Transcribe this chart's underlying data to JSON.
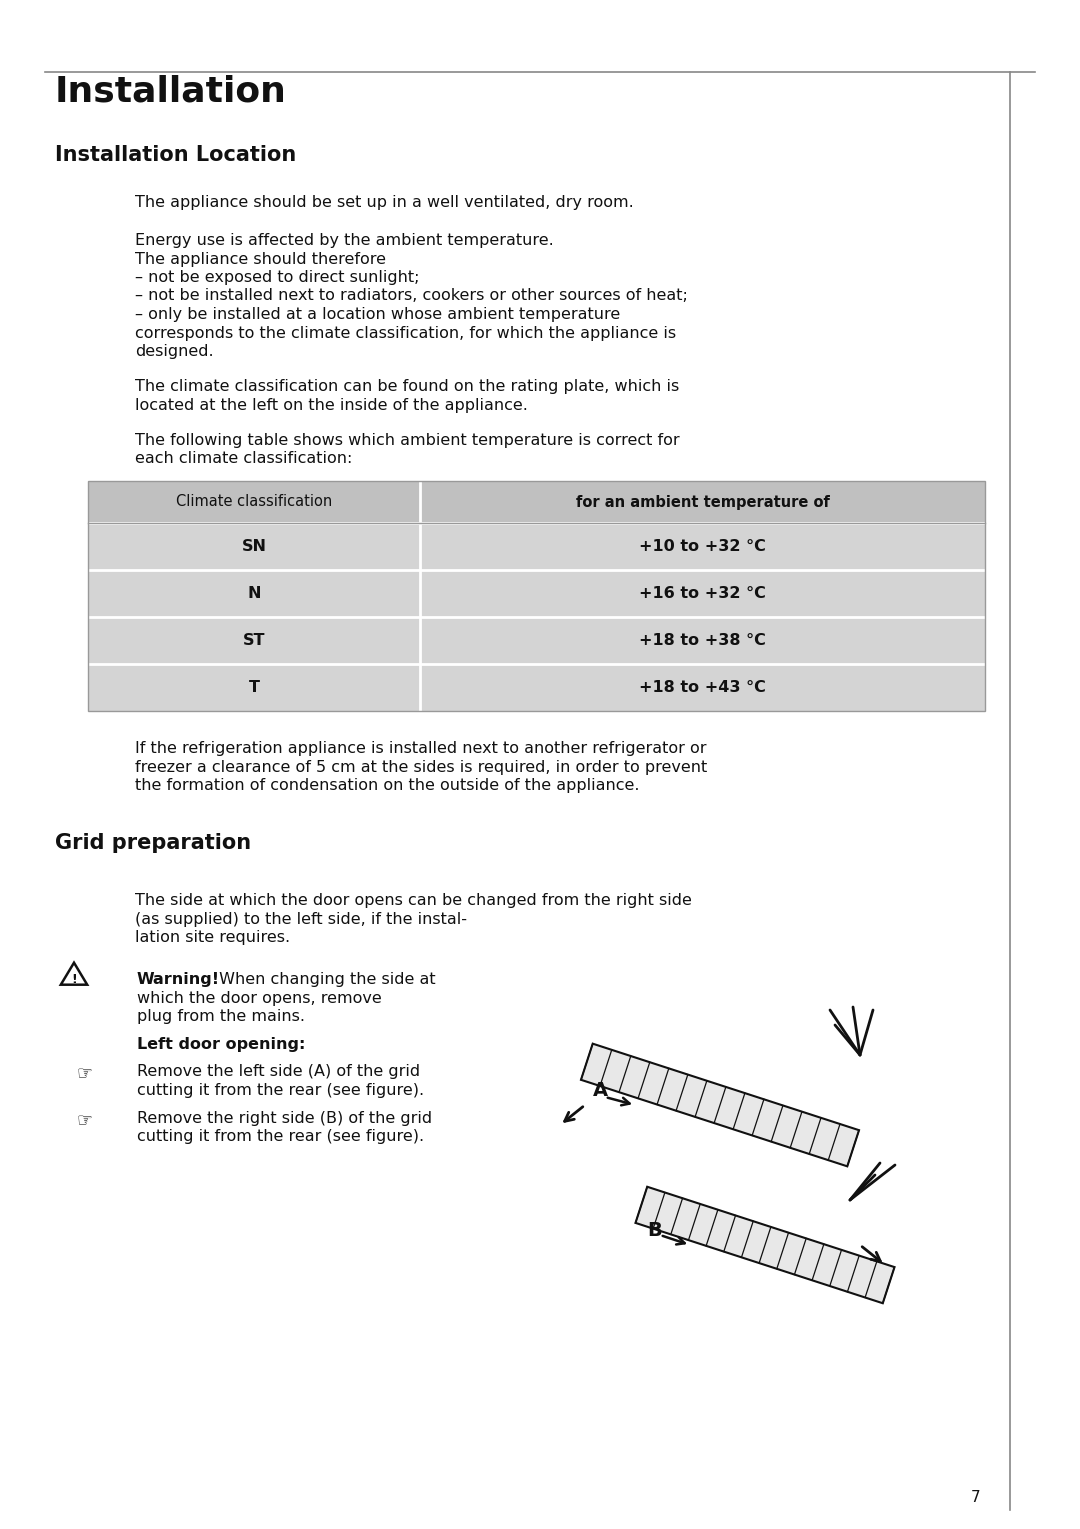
{
  "bg_color": "#ffffff",
  "border_color": "#888888",
  "page_number": "7",
  "main_title": "Installation",
  "section1_title": "Installation Location",
  "body_text_color": "#111111",
  "table_header_bg": "#c0c0c0",
  "table_row_bg": "#d4d4d4",
  "table_border_color": "#999999",
  "para1": "The appliance should be set up in a well ventilated, dry room.",
  "para2a": "Energy use is affected by the ambient temperature.",
  "para2b": "The appliance should therefore",
  "para2c": "– not be exposed to direct sunlight;",
  "para2d": "– not be installed next to radiators, cookers or other sources of heat;",
  "para2e": "– only be installed at a location whose ambient temperature",
  "para2f": "corresponds to the climate classification, for which the appliance is",
  "para2g": "designed.",
  "para3a": "The climate classification can be found on the rating plate, which is",
  "para3b": "located at the left on the inside of the appliance.",
  "para4a": "The following table shows which ambient temperature is correct for",
  "para4b": "each climate classification:",
  "table_col1_header": "Climate classification",
  "table_col2_header": "for an ambient temperature of",
  "table_rows": [
    [
      "SN",
      "+10 to +32 °C"
    ],
    [
      "N",
      "+16 to +32 °C"
    ],
    [
      "ST",
      "+18 to +38 °C"
    ],
    [
      "T",
      "+18 to +43 °C"
    ]
  ],
  "para5a": "If the refrigeration appliance is installed next to another refrigerator or",
  "para5b": "freezer a clearance of 5 cm at the sides is required, in order to prevent",
  "para5c": "the formation of condensation on the outside of the appliance.",
  "section2_title": "Grid preparation",
  "grid_para1a": "The side at which the door opens can be changed from the right side",
  "grid_para1b": "(as supplied) to the left side, if the instal-",
  "grid_para1c": "lation site requires.",
  "warning_bold": "Warning!",
  "warning_rest": " When changing the side at",
  "warning_line2": "which the door opens, remove",
  "warning_line3": "plug from the mains.",
  "left_door_label": "Left door opening:",
  "bullet1a": "Remove the left side (A) of the grid",
  "bullet1b": "cutting it from the rear (see figure).",
  "bullet2a": "Remove the right side (B) of the grid",
  "bullet2b": "cutting it from the rear (see figure)."
}
